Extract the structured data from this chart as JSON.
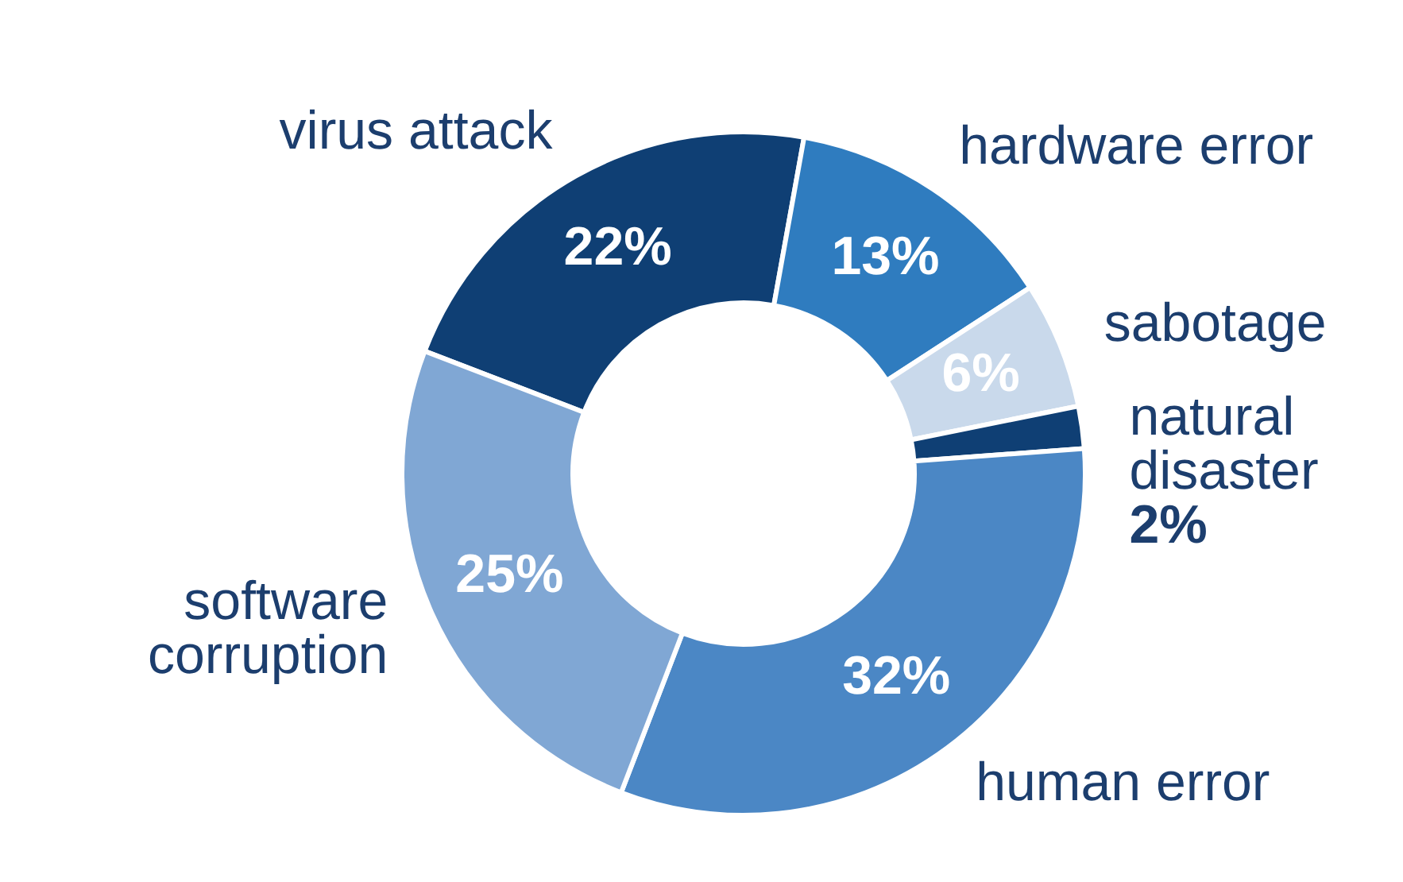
{
  "chart_data": {
    "type": "donut",
    "categories": [
      "virus attack",
      "hardware error",
      "sabotage",
      "natural disaster",
      "human error",
      "software corruption"
    ],
    "values": [
      22,
      13,
      6,
      2,
      32,
      25
    ],
    "value_labels": [
      "22%",
      "13%",
      "6%",
      "2%",
      "32%",
      "25%"
    ],
    "colors": [
      "#0f3f74",
      "#2f7cbf",
      "#c9d9eb",
      "#0f3f74",
      "#4b87c5",
      "#80a7d4"
    ],
    "legend": false
  }
}
